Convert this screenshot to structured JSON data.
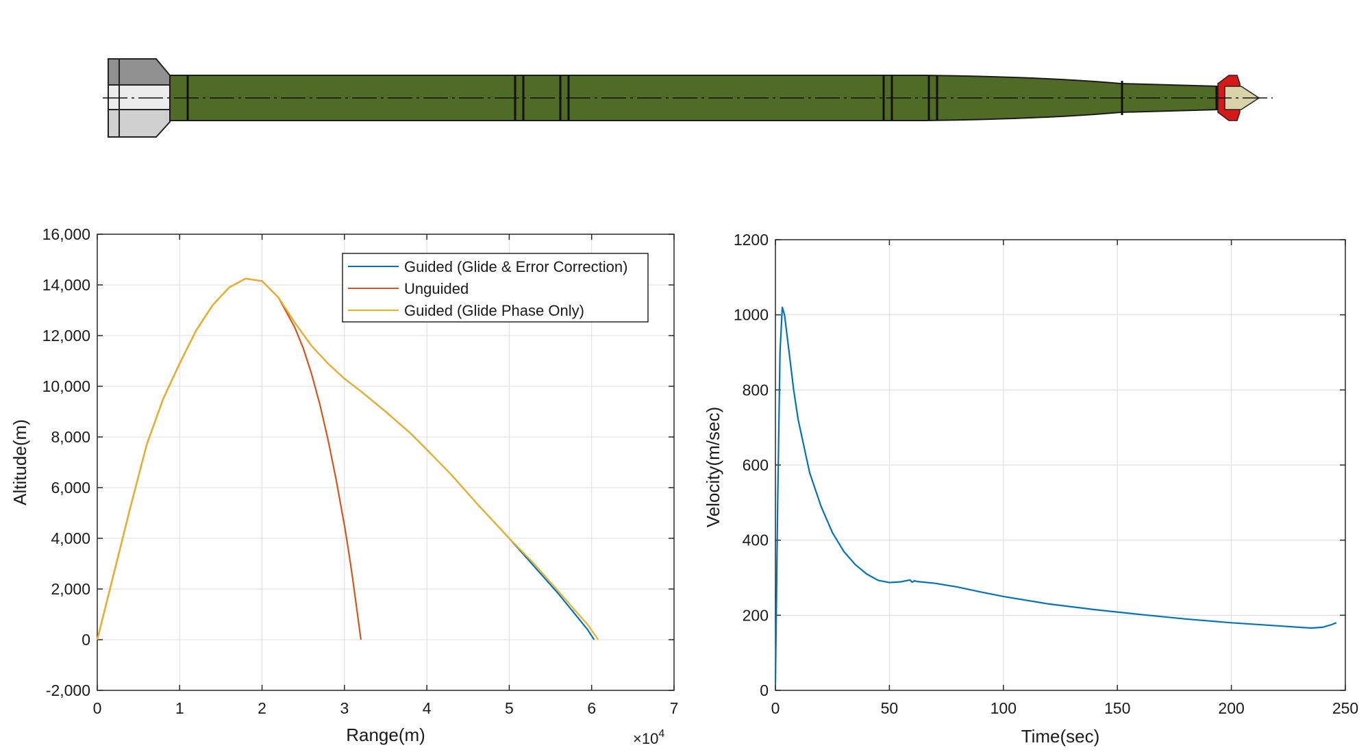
{
  "figure": {
    "illustration": "missile-side-view",
    "colors": {
      "missile_body": "#4f6b26",
      "missile_tail": "#a8a8a8",
      "missile_nose_tip": "#d8d2a8",
      "missile_nose_ring": "#d81818",
      "grid": "#dcdcdc",
      "axis": "#262626"
    }
  },
  "chart_data": [
    {
      "type": "line",
      "xlabel": "Range(m)",
      "ylabel": "Altitude(m)",
      "x_exponent_label": "×10",
      "x_exponent_power": "4",
      "xlim": [
        0,
        7
      ],
      "ylim": [
        -2000,
        16000
      ],
      "x_ticks": [
        0,
        1,
        2,
        3,
        4,
        5,
        6,
        7
      ],
      "x_tick_labels": [
        "0",
        "1",
        "2",
        "3",
        "4",
        "5",
        "6",
        "7"
      ],
      "y_ticks": [
        -2000,
        0,
        2000,
        4000,
        6000,
        8000,
        10000,
        12000,
        14000,
        16000
      ],
      "y_tick_labels": [
        "-2,000",
        "0",
        "2,000",
        "4,000",
        "6,000",
        "8,000",
        "10,000",
        "12,000",
        "14,000",
        "16,000"
      ],
      "grid": true,
      "legend_position": "top-right",
      "series": [
        {
          "name": "Guided (Glide & Error Correction)",
          "color": "#0072bd",
          "x": [
            0,
            0.2,
            0.4,
            0.6,
            0.8,
            1.0,
            1.2,
            1.4,
            1.6,
            1.8,
            2.0,
            2.2,
            2.4,
            2.6,
            2.8,
            3.0,
            3.2,
            3.5,
            3.8,
            4.0,
            4.3,
            4.6,
            5.0,
            5.3,
            5.6,
            5.8,
            5.95,
            6.03
          ],
          "y": [
            0,
            2600,
            5200,
            7700,
            9500,
            10900,
            12200,
            13200,
            13900,
            14250,
            14150,
            13500,
            12500,
            11600,
            10900,
            10300,
            9800,
            9000,
            8150,
            7500,
            6500,
            5400,
            4000,
            2900,
            1800,
            1000,
            400,
            0
          ]
        },
        {
          "name": "Unguided",
          "color": "#d95319",
          "x": [
            0,
            0.2,
            0.4,
            0.6,
            0.8,
            1.0,
            1.2,
            1.4,
            1.6,
            1.8,
            2.0,
            2.2,
            2.4,
            2.5,
            2.6,
            2.7,
            2.8,
            2.9,
            3.0,
            3.05,
            3.1,
            3.15,
            3.2
          ],
          "y": [
            0,
            2600,
            5200,
            7700,
            9500,
            10900,
            12200,
            13200,
            13900,
            14250,
            14150,
            13500,
            12300,
            11500,
            10500,
            9300,
            7900,
            6300,
            4500,
            3500,
            2400,
            1200,
            0
          ]
        },
        {
          "name": "Guided (Glide Phase Only)",
          "color": "#edb120",
          "x": [
            0,
            0.2,
            0.4,
            0.6,
            0.8,
            1.0,
            1.2,
            1.4,
            1.6,
            1.8,
            2.0,
            2.2,
            2.4,
            2.6,
            2.8,
            3.0,
            3.2,
            3.5,
            3.8,
            4.0,
            4.3,
            4.6,
            5.0,
            5.3,
            5.6,
            5.8,
            5.95,
            6.08
          ],
          "y": [
            0,
            2600,
            5200,
            7700,
            9500,
            10900,
            12200,
            13200,
            13900,
            14250,
            14150,
            13500,
            12500,
            11600,
            10900,
            10300,
            9800,
            9000,
            8150,
            7500,
            6500,
            5400,
            4000,
            3000,
            1900,
            1150,
            600,
            0
          ]
        }
      ]
    },
    {
      "type": "line",
      "xlabel": "Time(sec)",
      "ylabel": "Velocity(m/sec)",
      "xlim": [
        0,
        250
      ],
      "ylim": [
        0,
        1200
      ],
      "x_ticks": [
        0,
        50,
        100,
        150,
        200,
        250
      ],
      "x_tick_labels": [
        "0",
        "50",
        "100",
        "150",
        "200",
        "250"
      ],
      "y_ticks": [
        0,
        200,
        400,
        600,
        800,
        1000,
        1200
      ],
      "y_tick_labels": [
        "0",
        "200",
        "400",
        "600",
        "800",
        "1000",
        "1200"
      ],
      "grid": true,
      "series": [
        {
          "color": "#0072bd",
          "x": [
            0,
            1,
            2,
            3,
            4,
            6,
            8,
            10,
            15,
            20,
            25,
            30,
            35,
            40,
            45,
            50,
            55,
            59,
            60,
            61,
            62,
            70,
            80,
            90,
            100,
            120,
            140,
            160,
            180,
            200,
            220,
            235,
            240,
            244,
            246
          ],
          "y": [
            20,
            500,
            900,
            1020,
            1000,
            900,
            800,
            720,
            580,
            490,
            420,
            370,
            335,
            310,
            293,
            287,
            289,
            294,
            288,
            292,
            290,
            285,
            275,
            262,
            250,
            230,
            215,
            202,
            190,
            180,
            172,
            166,
            168,
            175,
            180
          ]
        }
      ]
    }
  ]
}
